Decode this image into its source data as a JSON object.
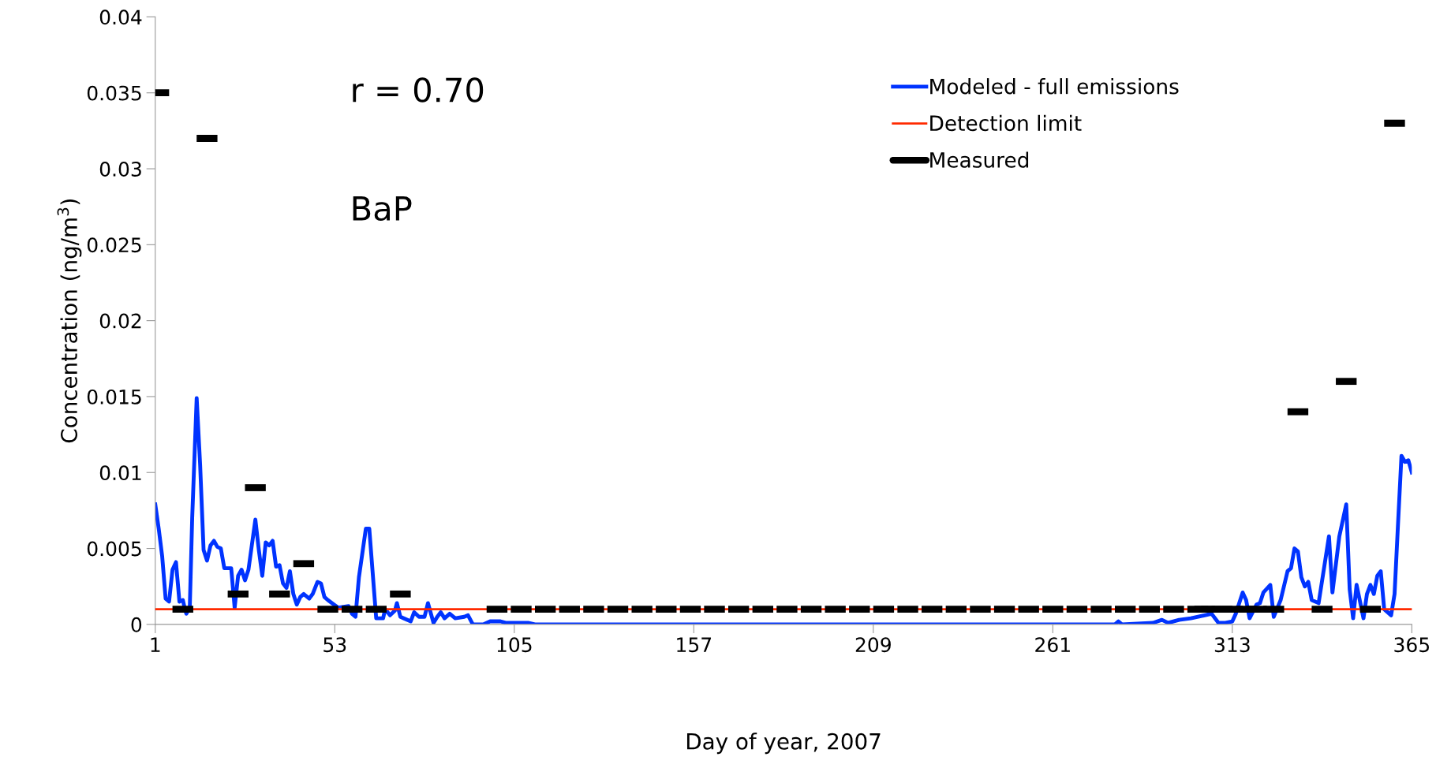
{
  "chart_data": {
    "type": "line",
    "xlabel": "Day of year, 2007",
    "ylabel": "Concentration (ng/m$^{3}$)",
    "xlim": [
      1,
      365
    ],
    "xticks": [
      1,
      53,
      105,
      157,
      209,
      261,
      313,
      365
    ],
    "ylim": [
      0,
      0.04
    ],
    "yticks": [
      0,
      0.005,
      0.01,
      0.015,
      0.02,
      0.025,
      0.03,
      0.035,
      0.04
    ],
    "grid": false,
    "legend": "top right",
    "annotations": [
      "r = 0.70",
      "BaP"
    ],
    "ref_lines": [
      {
        "axis": "y",
        "value": 0.001,
        "label": "Detection limit",
        "color": "#ff2a00"
      }
    ],
    "series": [
      {
        "name": "Modeled - full emissions",
        "color": "#0033ff",
        "x": [
          1,
          2,
          3,
          4,
          5,
          6,
          7,
          8,
          9,
          9.5,
          10,
          11,
          11.7,
          13,
          14,
          15,
          16,
          17,
          18,
          19,
          20,
          21,
          22,
          23,
          24,
          25,
          26,
          27,
          28,
          30,
          31,
          32,
          33,
          34,
          35,
          36,
          37,
          38,
          39,
          40,
          41,
          42,
          43,
          44,
          45.6,
          46.6,
          48,
          49,
          50,
          51,
          54,
          57,
          58,
          59,
          60,
          62,
          63,
          65,
          67,
          67.6,
          69,
          70.4,
          71,
          72,
          75,
          76,
          77.4,
          79,
          80,
          81.6,
          82.7,
          83.7,
          84.8,
          86.3,
          87.9,
          90.5,
          91.6,
          93,
          96,
          98,
          99.5,
          101,
          102.5,
          105.5,
          109,
          111,
          279,
          280,
          281,
          290,
          292.6,
          294.4,
          297.6,
          301,
          307,
          309,
          311,
          313,
          314,
          316,
          317,
          318,
          320,
          321,
          322,
          324,
          325,
          327,
          329,
          330,
          331,
          332,
          333,
          334,
          335,
          336,
          338,
          341,
          342,
          344,
          346,
          347,
          348,
          349,
          351,
          352,
          353,
          354,
          355,
          356,
          357,
          359,
          360,
          361,
          362,
          363,
          364,
          365
        ],
        "values": [
          0.0079,
          0.0063,
          0.0045,
          0.0017,
          0.0015,
          0.0036,
          0.0041,
          0.0015,
          0.0016,
          0.0011,
          0.0007,
          0.0011,
          0.007,
          0.0149,
          0.0105,
          0.0049,
          0.0042,
          0.0052,
          0.0055,
          0.0051,
          0.005,
          0.0037,
          0.0037,
          0.0037,
          0.0011,
          0.0032,
          0.0036,
          0.0029,
          0.0036,
          0.0069,
          0.0049,
          0.0032,
          0.0054,
          0.0052,
          0.0055,
          0.0038,
          0.0039,
          0.0027,
          0.0024,
          0.0035,
          0.002,
          0.0013,
          0.0018,
          0.002,
          0.0017,
          0.002,
          0.0028,
          0.0027,
          0.0018,
          0.0016,
          0.0011,
          0.0012,
          0.0007,
          0.0005,
          0.0031,
          0.0063,
          0.0063,
          0.0004,
          0.0004,
          0.001,
          0.0006,
          0.0009,
          0.0014,
          0.0005,
          0.0002,
          0.0008,
          0.0005,
          0.0005,
          0.0014,
          0.0001,
          0.0005,
          0.0008,
          0.0004,
          0.0007,
          0.0004,
          0.0005,
          0.0006,
          0,
          0,
          0.0002,
          0.0002,
          0.0002,
          0.0001,
          0.0001,
          0.0001,
          0,
          0,
          0.0002,
          0,
          0.0001,
          0.0003,
          0.0001,
          0.0003,
          0.0004,
          0.0007,
          0.0001,
          0.0001,
          0.0002,
          0.0007,
          0.0021,
          0.0016,
          0.0004,
          0.0013,
          0.0014,
          0.0021,
          0.0026,
          0.0005,
          0.0016,
          0.0035,
          0.0037,
          0.005,
          0.0048,
          0.0031,
          0.0025,
          0.0028,
          0.0016,
          0.0014,
          0.0058,
          0.0021,
          0.0058,
          0.0079,
          0.0023,
          0.0004,
          0.0026,
          0.0004,
          0.002,
          0.0026,
          0.002,
          0.0032,
          0.0035,
          0.001,
          0.0006,
          0.002,
          0.0066,
          0.0111,
          0.0107,
          0.0108,
          0.01
        ]
      },
      {
        "name": "Measured",
        "color": "#000000",
        "type": "scatter",
        "x": [
          2,
          9,
          16,
          25,
          30,
          37,
          44,
          51,
          58,
          65,
          72,
          100,
          107,
          114,
          121,
          128,
          135,
          142,
          149,
          156,
          163,
          170,
          177,
          184,
          191,
          198,
          205,
          212,
          219,
          226,
          233,
          240,
          247,
          254,
          261,
          268,
          275,
          282,
          289,
          296,
          303,
          305,
          307,
          310,
          313,
          317,
          320,
          325,
          332,
          339,
          346,
          353,
          360
        ],
        "values": [
          0.035,
          0.001,
          0.032,
          0.002,
          0.009,
          0.002,
          0.004,
          0.001,
          0.001,
          0.001,
          0.002,
          0.001,
          0.001,
          0.001,
          0.001,
          0.001,
          0.001,
          0.001,
          0.001,
          0.001,
          0.001,
          0.001,
          0.001,
          0.001,
          0.001,
          0.001,
          0.001,
          0.001,
          0.001,
          0.001,
          0.001,
          0.001,
          0.001,
          0.001,
          0.001,
          0.001,
          0.001,
          0.001,
          0.001,
          0.001,
          0.001,
          0.001,
          0.001,
          0.001,
          0.001,
          0.001,
          0.001,
          0.001,
          0.014,
          0.001,
          0.016,
          0.001,
          0.033
        ]
      }
    ]
  }
}
